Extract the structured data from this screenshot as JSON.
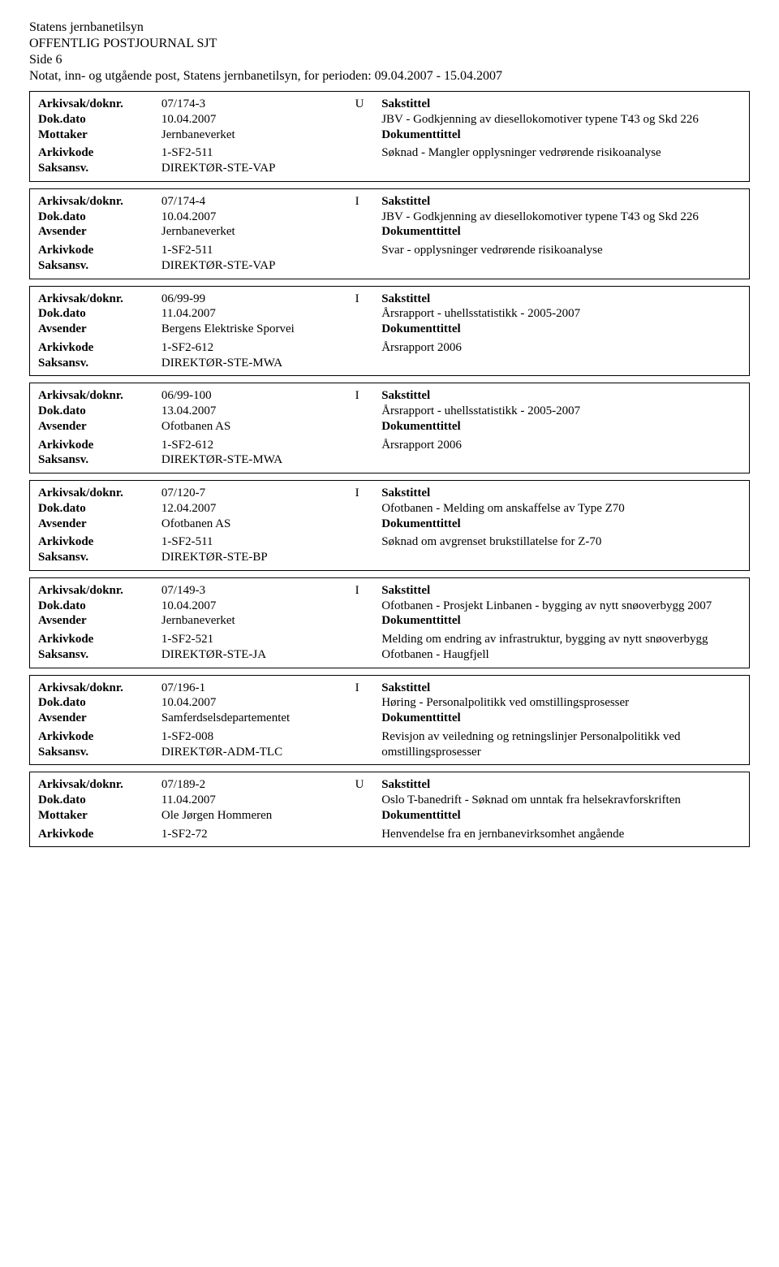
{
  "header": {
    "line1": "Statens jernbanetilsyn",
    "line2": "OFFENTLIG POSTJOURNAL SJT",
    "line3": "Side 6",
    "line4": "Notat, inn- og utgående post, Statens jernbanetilsyn, for perioden: 09.04.2007 - 15.04.2007"
  },
  "labels": {
    "arkivsak": "Arkivsak/doknr.",
    "dokdato": "Dok.dato",
    "mottaker": "Mottaker",
    "avsender": "Avsender",
    "arkivkode": "Arkivkode",
    "saksansv": "Saksansv.",
    "sakstittel": "Sakstittel",
    "dokumenttittel": "Dokumenttittel"
  },
  "entries": [
    {
      "doknr": "07/174-3",
      "dir": "U",
      "date": "10.04.2007",
      "partyLabel": "Mottaker",
      "party": "Jernbaneverket",
      "arkivkode": "1-SF2-511",
      "saksansv": "DIREKTØR-STE-VAP",
      "sakstittel": "JBV - Godkjenning av diesellokomotiver typene T43 og Skd 226",
      "doktittel": "Søknad - Mangler opplysninger vedrørende risikoanalyse"
    },
    {
      "doknr": "07/174-4",
      "dir": "I",
      "date": "10.04.2007",
      "partyLabel": "Avsender",
      "party": "Jernbaneverket",
      "arkivkode": "1-SF2-511",
      "saksansv": "DIREKTØR-STE-VAP",
      "sakstittel": "JBV - Godkjenning av diesellokomotiver typene T43 og Skd 226",
      "doktittel": "Svar - opplysninger vedrørende risikoanalyse"
    },
    {
      "doknr": "06/99-99",
      "dir": "I",
      "date": "11.04.2007",
      "partyLabel": "Avsender",
      "party": "Bergens Elektriske Sporvei",
      "arkivkode": "1-SF2-612",
      "saksansv": "DIREKTØR-STE-MWA",
      "sakstittel": "Årsrapport - uhellsstatistikk - 2005-2007",
      "doktittel": "Årsrapport 2006"
    },
    {
      "doknr": "06/99-100",
      "dir": "I",
      "date": "13.04.2007",
      "partyLabel": "Avsender",
      "party": "Ofotbanen AS",
      "arkivkode": "1-SF2-612",
      "saksansv": "DIREKTØR-STE-MWA",
      "sakstittel": "Årsrapport - uhellsstatistikk - 2005-2007",
      "doktittel": "Årsrapport 2006"
    },
    {
      "doknr": "07/120-7",
      "dir": "I",
      "date": "12.04.2007",
      "partyLabel": "Avsender",
      "party": "Ofotbanen AS",
      "arkivkode": "1-SF2-511",
      "saksansv": "DIREKTØR-STE-BP",
      "sakstittel": "Ofotbanen - Melding om anskaffelse av Type Z70",
      "doktittel": "Søknad om avgrenset brukstillatelse for Z-70"
    },
    {
      "doknr": "07/149-3",
      "dir": "I",
      "date": "10.04.2007",
      "partyLabel": "Avsender",
      "party": "Jernbaneverket",
      "arkivkode": "1-SF2-521",
      "saksansv": "DIREKTØR-STE-JA",
      "sakstittel": "Ofotbanen - Prosjekt Linbanen - bygging av nytt snøoverbygg 2007",
      "doktittel": "Melding om endring av infrastruktur, bygging av nytt snøoverbygg Ofotbanen - Haugfjell"
    },
    {
      "doknr": "07/196-1",
      "dir": "I",
      "date": "10.04.2007",
      "partyLabel": "Avsender",
      "party": "Samferdselsdepartementet",
      "arkivkode": "1-SF2-008",
      "saksansv": "DIREKTØR-ADM-TLC",
      "sakstittel": "Høring - Personalpolitikk ved omstillingsprosesser",
      "doktittel": "Revisjon av veiledning og retningslinjer Personalpolitikk ved omstillingsprosesser"
    },
    {
      "doknr": "07/189-2",
      "dir": "U",
      "date": "11.04.2007",
      "partyLabel": "Mottaker",
      "party": "Ole Jørgen Hommeren",
      "arkivkode": "1-SF2-72",
      "saksansv": "",
      "sakstittel": "Oslo T-banedrift - Søknad om unntak fra helsekravforskriften",
      "doktittel": "Henvendelse fra en jernbanevirksomhet angående",
      "noSaksansv": true
    }
  ]
}
